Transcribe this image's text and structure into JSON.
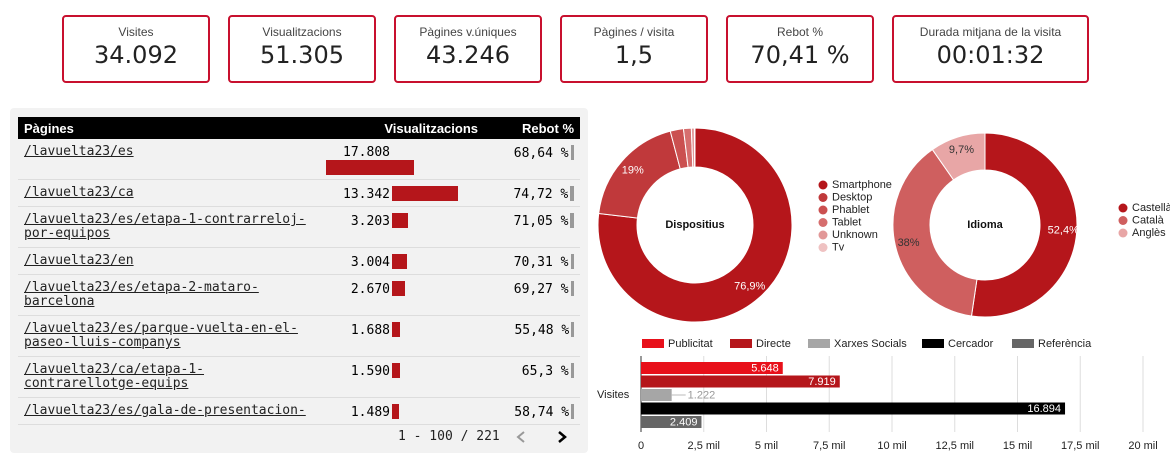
{
  "kpis": [
    {
      "label": "Visites",
      "value": "34.092"
    },
    {
      "label": "Visualitzacions",
      "value": "51.305"
    },
    {
      "label": "Pàgines v.úniques",
      "value": "43.246"
    },
    {
      "label": "Pàgines / visita",
      "value": "1,5"
    },
    {
      "label": "Rebot %",
      "value": "70,41 %"
    },
    {
      "label": "Durada mitjana de la visita",
      "value": "00:01:32"
    }
  ],
  "table": {
    "columns": [
      "Pàgines",
      "Visualitzacions",
      "Rebot %"
    ],
    "pages": [
      "/lavuelta23/es",
      "/lavuelta23/ca",
      "/lavuelta23/es/etapa-1-contrarreloj-por-equipos",
      "/lavuelta23/en",
      "/lavuelta23/es/etapa-2-mataro-barcelona",
      "/lavuelta23/es/parque-vuelta-en-el-paseo-lluis-companys",
      "/lavuelta23/ca/etapa-1-contrarellotge-equips",
      "/lavuelta23/es/gala-de-presentacion-"
    ],
    "views": [
      17808,
      13342,
      3203,
      3004,
      2670,
      1688,
      1590,
      1489
    ],
    "views_labels": [
      "17.808",
      "13.342",
      "3.203",
      "3.004",
      "2.670",
      "1.688",
      "1.590",
      "1.489"
    ],
    "bounce": [
      68.64,
      74.72,
      71.05,
      70.31,
      69.27,
      55.48,
      65.3,
      58.74
    ],
    "bounce_labels": [
      "68,64 %",
      "74,72 %",
      "71,05 %",
      "70,31 %",
      "69,27 %",
      "55,48 %",
      "65,3 %",
      "58,74 %"
    ],
    "pagination": "1 - 100 / 221"
  },
  "chart_data": [
    {
      "type": "pie",
      "donut": true,
      "title": "Dispositius",
      "categories": [
        "Smartphone",
        "Desktop",
        "Phablet",
        "Tablet",
        "Unknown",
        "Tv"
      ],
      "values": [
        76.9,
        19,
        2.2,
        1.3,
        0.5,
        0.1
      ],
      "value_labels": [
        "76,9%",
        "19%",
        null,
        null,
        null,
        null
      ],
      "colors": [
        "#b5161b",
        "#c0393b",
        "#cb5050",
        "#d66e6e",
        "#e29898",
        "#efc2c2"
      ],
      "legend": "right"
    },
    {
      "type": "pie",
      "donut": true,
      "title": "Idioma",
      "categories": [
        "Castellà",
        "Català",
        "Anglès"
      ],
      "values": [
        52.4,
        38,
        9.7
      ],
      "value_labels": [
        "52,4%",
        "38%",
        "9,7%"
      ],
      "colors": [
        "#b5161b",
        "#cf5f5f",
        "#e8a6a6"
      ],
      "legend": "right"
    },
    {
      "type": "bar",
      "orientation": "horizontal",
      "categories": [
        "Visites"
      ],
      "series": [
        {
          "name": "Publicitat",
          "color": "#e8101a",
          "values": [
            5648
          ],
          "value_labels": [
            "5.648"
          ]
        },
        {
          "name": "Directe",
          "color": "#b5161b",
          "values": [
            7919
          ],
          "value_labels": [
            "7.919"
          ]
        },
        {
          "name": "Xarxes Socials",
          "color": "#a6a6a6",
          "values": [
            1222
          ],
          "value_labels": [
            "1.222"
          ]
        },
        {
          "name": "Cercador",
          "color": "#000000",
          "values": [
            16894
          ],
          "value_labels": [
            "16.894"
          ]
        },
        {
          "name": "Referència",
          "color": "#666666",
          "values": [
            2409
          ],
          "value_labels": [
            "2.409"
          ]
        }
      ],
      "xlim": [
        0,
        20000
      ],
      "xticks": [
        0,
        {
          "value": 2500,
          "label": "2,5 mil"
        },
        {
          "value": 5000,
          "label": "5 mil"
        },
        {
          "value": 7500,
          "label": "7,5 mil"
        },
        {
          "value": 10000,
          "label": "10 mil"
        },
        {
          "value": 12500,
          "label": "12,5 mil"
        },
        {
          "value": 15000,
          "label": "15 mil"
        },
        {
          "value": 17500,
          "label": "17,5 mil"
        },
        {
          "value": 20000,
          "label": "20 mil"
        }
      ],
      "grid": true,
      "legend": "top"
    }
  ]
}
